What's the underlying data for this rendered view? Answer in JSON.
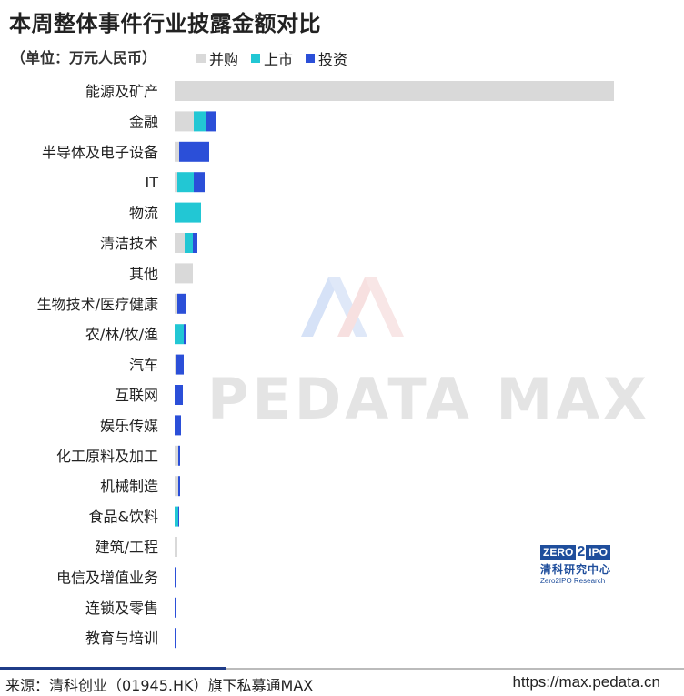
{
  "header": {
    "title": "本周整体事件行业披露金额对比",
    "unit": "（单位：万元人民币）"
  },
  "legend": [
    {
      "name": "并购",
      "color": "#d9d9d9"
    },
    {
      "name": "上市",
      "color": "#22c7d4"
    },
    {
      "name": "投资",
      "color": "#2b4fd8"
    }
  ],
  "chart_data": {
    "type": "bar",
    "orientation": "horizontal",
    "stacked": true,
    "categories": [
      "能源及矿产",
      "金融",
      "半导体及电子设备",
      "IT",
      "物流",
      "清洁技术",
      "其他",
      "生物技术/医疗健康",
      "农/林/牧/渔",
      "汽车",
      "互联网",
      "娱乐传媒",
      "化工原料及加工",
      "机械制造",
      "食品&饮料",
      "建筑/工程",
      "电信及增值业务",
      "连锁及零售",
      "教育与培训"
    ],
    "series": [
      {
        "name": "并购",
        "color": "#d9d9d9",
        "values": [
          483,
          21,
          5,
          3,
          0,
          11,
          20,
          3,
          0,
          2,
          0,
          0,
          4,
          4,
          0,
          3,
          0,
          0,
          0
        ]
      },
      {
        "name": "上市",
        "color": "#22c7d4",
        "values": [
          0,
          14,
          0,
          18,
          29,
          9,
          0,
          0,
          10,
          0,
          0,
          0,
          0,
          0,
          4,
          0,
          0,
          0,
          0
        ]
      },
      {
        "name": "投资",
        "color": "#2b4fd8",
        "values": [
          0,
          10,
          33,
          12,
          0,
          5,
          0,
          9,
          2,
          8,
          9,
          7,
          2,
          2,
          1,
          0,
          2,
          1,
          1
        ]
      }
    ],
    "grid": false,
    "legend_position": "top"
  },
  "watermark": {
    "text": "PEDATA MAX"
  },
  "logo": {
    "badge_left": "ZERO",
    "badge_num": "2",
    "badge_right": "IPO",
    "name": "清科研究中心",
    "sub": "Zero2IPO Research"
  },
  "footer": {
    "source": "来源：清科创业（01945.HK）旗下私募通MAX",
    "url": "https://max.pedata.cn"
  }
}
